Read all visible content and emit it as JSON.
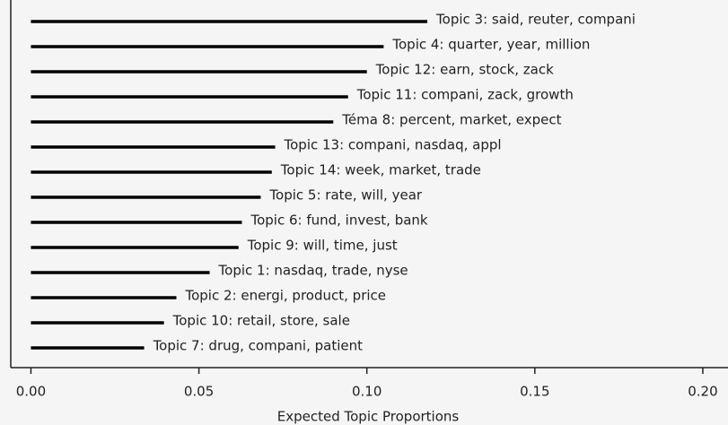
{
  "chart_data": {
    "type": "bar",
    "orientation": "horizontal",
    "xlabel": "Expected Topic Proportions",
    "categories": [
      "Topic 3: said, reuter, compani",
      "Topic 4: quarter, year, million",
      "Topic 12: earn, stock, zack",
      "Topic 11: compani, zack, growth",
      "Téma 8: percent, market, expect",
      "Topic 13: compani, nasdaq, appl",
      "Topic 14: week, market, trade",
      "Topic 5: rate, will, year",
      "Topic 6: fund, invest, bank",
      "Topic 9: will, time, just",
      "Topic 1: nasdaq, trade, nyse",
      "Topic 2: energi, product, price",
      "Topic 10: retail, store, sale",
      "Topic 7: drug, compani, patient"
    ],
    "values": [
      0.118,
      0.105,
      0.1,
      0.0944,
      0.09,
      0.0727,
      0.0717,
      0.0684,
      0.0628,
      0.0618,
      0.0532,
      0.0433,
      0.0396,
      0.0337
    ],
    "color": "#000000",
    "xlim": [
      -0.006,
      0.2075
    ],
    "xticks": [
      {
        "value": 0,
        "label": "0.00"
      },
      0.05,
      {
        "value": 0.1,
        "label": "0.10"
      },
      0.15,
      {
        "value": 0.2,
        "label": "0.20"
      }
    ]
  }
}
